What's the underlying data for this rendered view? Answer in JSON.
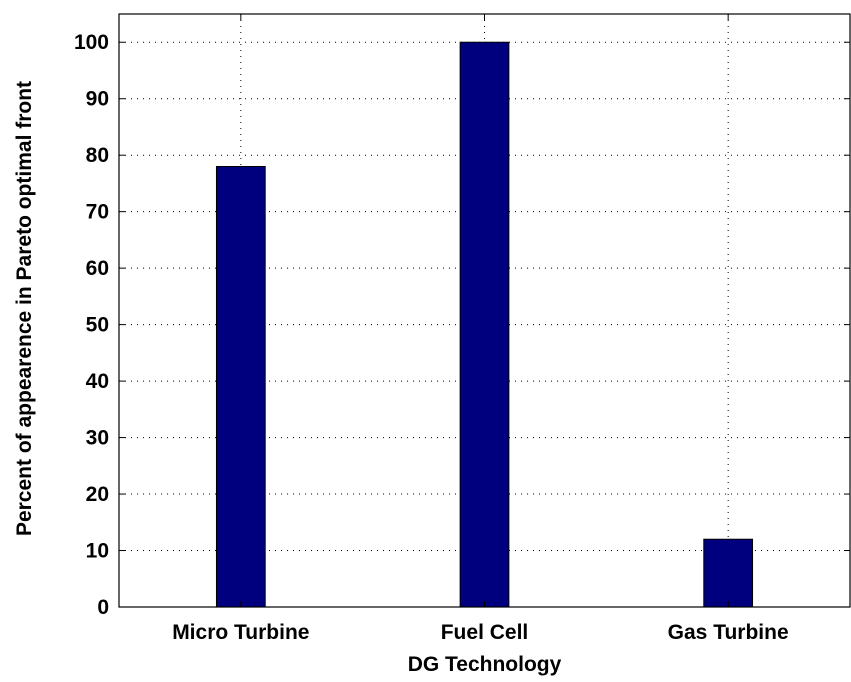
{
  "chart_data": {
    "type": "bar",
    "title": "",
    "xlabel": "DG Technology",
    "ylabel": "Percent of appearence in Pareto optimal front",
    "categories": [
      "Micro Turbine",
      "Fuel Cell",
      "Gas Turbine"
    ],
    "values": [
      78,
      100,
      12
    ],
    "ylim": [
      0,
      105
    ],
    "yticks": [
      0,
      10,
      20,
      30,
      40,
      50,
      60,
      70,
      80,
      90,
      100
    ],
    "grid": true,
    "legend": "none",
    "colors": {
      "bar": "#00007f",
      "bar_edge": "#000000",
      "axis": "#000000",
      "grid": "#000000"
    }
  }
}
